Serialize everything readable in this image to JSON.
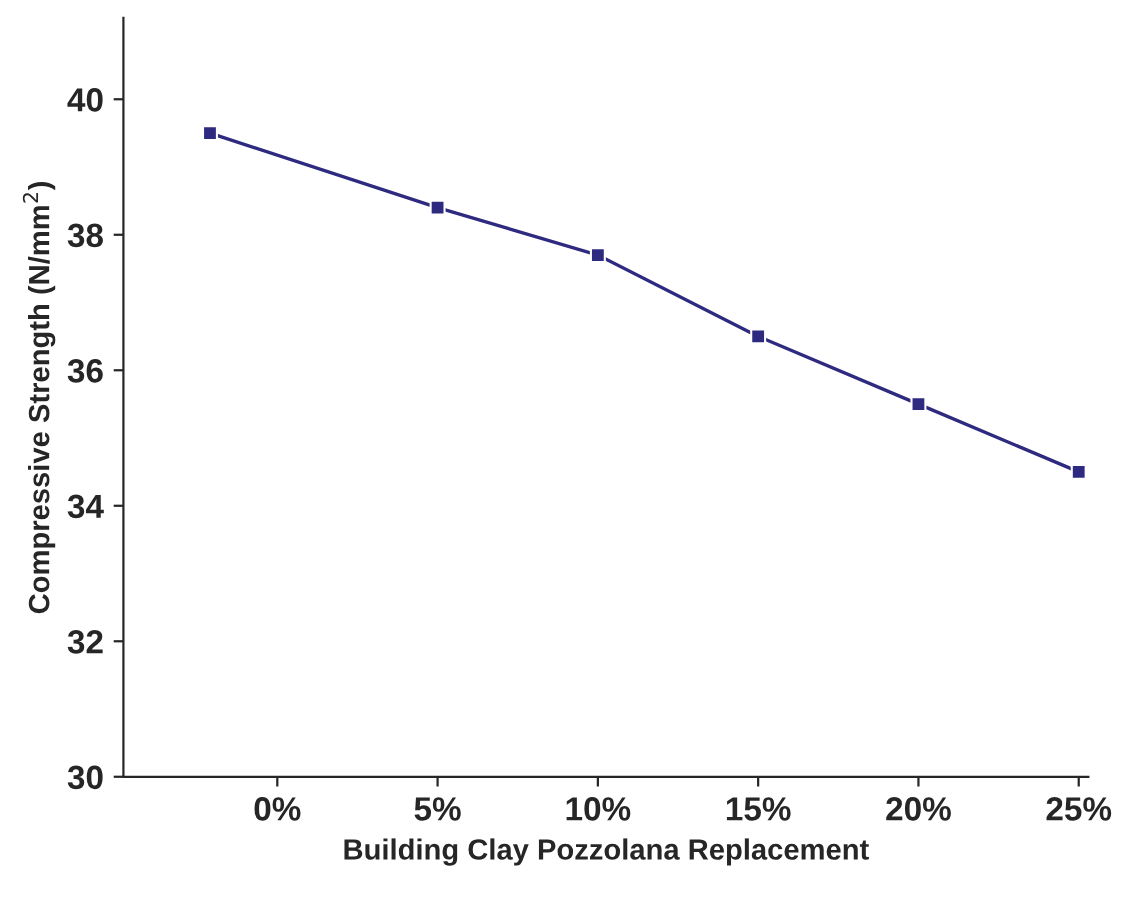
{
  "chart_data": {
    "type": "line",
    "xlabel": "Building Clay Pozzolana Replacement",
    "ylabel": "Compressive Strength (N/mm$^{2}$)",
    "series": [
      {
        "color": "#2e2a80",
        "x": [
          -2.1,
          5,
          10,
          15,
          20,
          25
        ],
        "values": [
          39.5,
          38.4,
          37.7,
          36.5,
          35.5,
          34.5
        ]
      }
    ],
    "xlim": [
      -4.8,
      25.3
    ],
    "xticks": [
      {
        "value": 0,
        "label": "0%"
      },
      {
        "value": 5,
        "label": "5%"
      },
      {
        "value": 10,
        "label": "10%"
      },
      {
        "value": 15,
        "label": "15%"
      },
      {
        "value": 20,
        "label": "20%"
      },
      {
        "value": 25,
        "label": "25%"
      }
    ],
    "ylim": [
      30,
      41.2
    ],
    "yticks": [
      30,
      32,
      34,
      36,
      38,
      40
    ],
    "grid": false,
    "marker": "square",
    "line_style": "solid"
  }
}
